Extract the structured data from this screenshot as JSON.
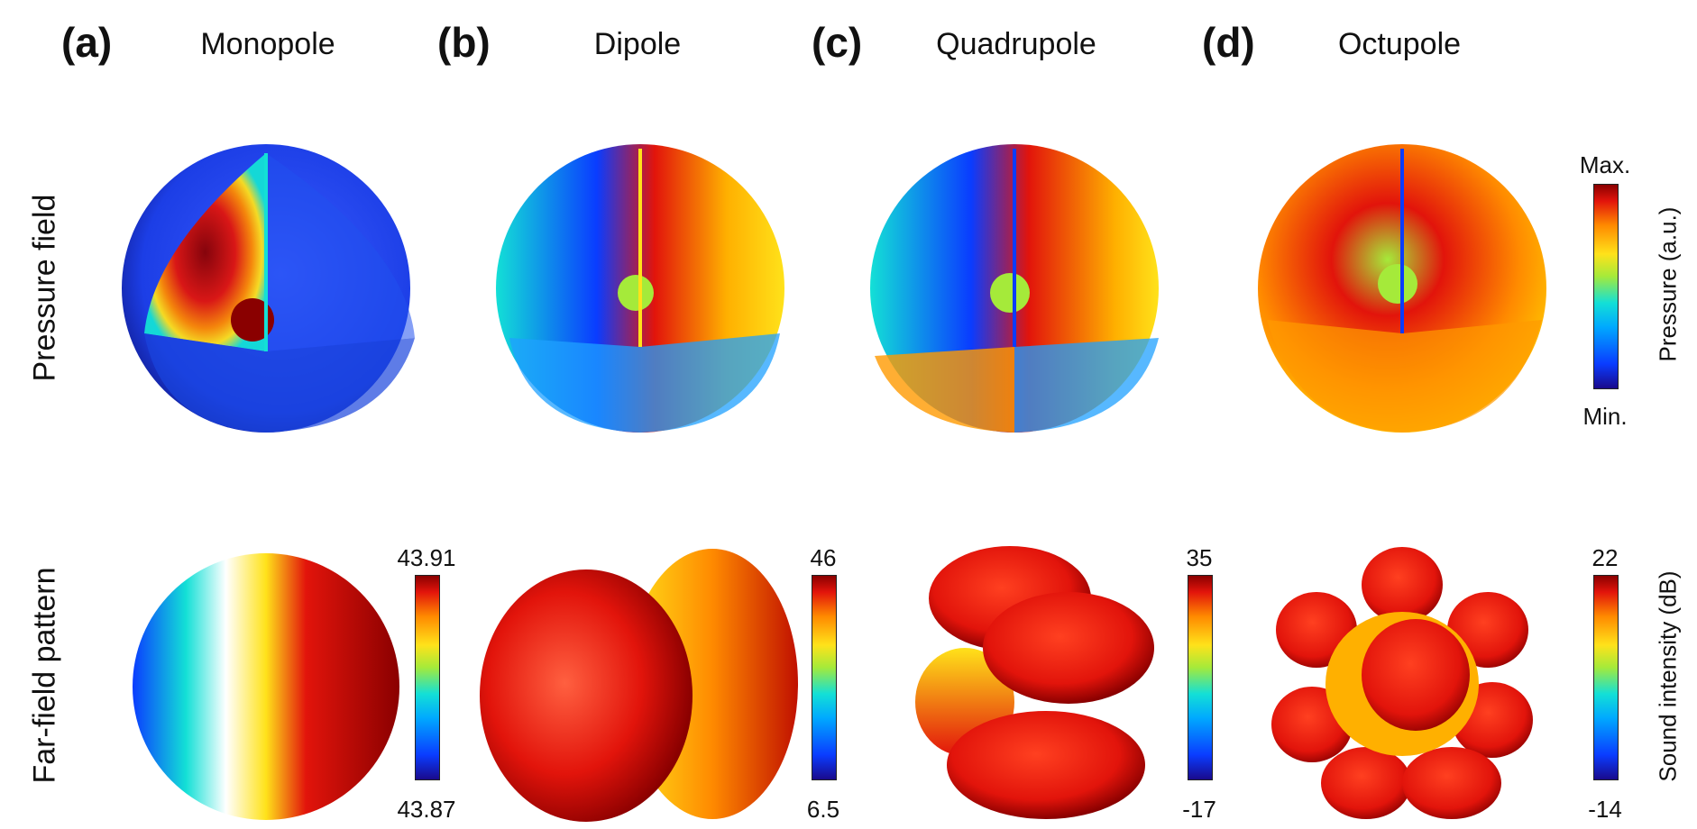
{
  "panels": [
    {
      "letter": "(a)",
      "title": "Monopole"
    },
    {
      "letter": "(b)",
      "title": "Dipole"
    },
    {
      "letter": "(c)",
      "title": "Quadrupole"
    },
    {
      "letter": "(d)",
      "title": "Octupole"
    }
  ],
  "rows": {
    "pressure": "Pressure field",
    "farfield": "Far-field pattern"
  },
  "pressure_colorbar": {
    "max": "Max.",
    "min": "Min.",
    "label": "Pressure (a.u.)"
  },
  "farfield_colorbars": [
    {
      "max": "43.91",
      "min": "43.87"
    },
    {
      "max": "46",
      "min": "6.5"
    },
    {
      "max": "35",
      "min": "-17"
    },
    {
      "max": "22",
      "min": "-14"
    }
  ],
  "farfield_axis_label": "Sound intensity (dB)",
  "colormap": [
    "#1a0a8c",
    "#0a3cff",
    "#00a8ff",
    "#13e0d6",
    "#a5ea3a",
    "#ffe21a",
    "#ff8a00",
    "#e2140b",
    "#8a0000"
  ]
}
